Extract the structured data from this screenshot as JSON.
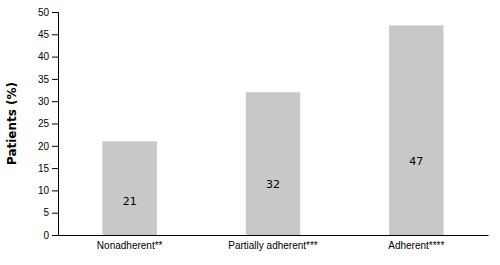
{
  "chart_data": {
    "type": "bar",
    "ylabel": "Patients (%)",
    "categories": [
      "Nonadherent**",
      "Partially adherent***",
      "Adherent****"
    ],
    "values": [
      21,
      32,
      47
    ],
    "color": "#c8c8c8",
    "ylim": [
      0,
      50
    ],
    "yticks": [
      0,
      5,
      10,
      15,
      20,
      25,
      30,
      35,
      40,
      45,
      50
    ],
    "data_labels": true,
    "grid": false
  }
}
